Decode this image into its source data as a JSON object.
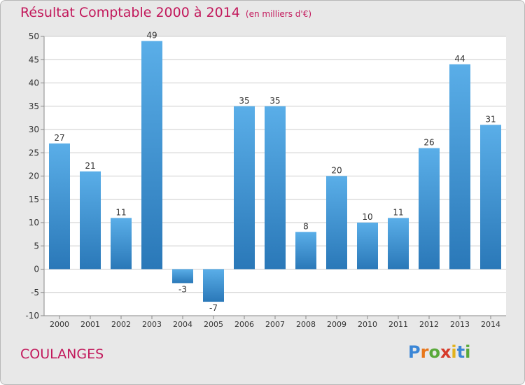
{
  "header": {
    "title": "Résultat Comptable 2000 à 2014",
    "unit": "(en milliers d'€)"
  },
  "footer": {
    "place": "COULANGES",
    "logo_letters": [
      "P",
      "r",
      "o",
      "x",
      "i",
      "t",
      "i"
    ],
    "logo_colors": [
      "#3a86d6",
      "#e8761a",
      "#59a93a",
      "#d63a2a",
      "#e2b21c",
      "#3a86d6",
      "#59a93a"
    ]
  },
  "colors": {
    "title": "#c2185b",
    "bar_light": "#5aaee8",
    "bar_dark": "#2a78b8",
    "grid": "#cccccc"
  },
  "chart_data": {
    "type": "bar",
    "title": "Résultat Comptable 2000 à 2014",
    "categories": [
      "2000",
      "2001",
      "2002",
      "2003",
      "2004",
      "2005",
      "2006",
      "2007",
      "2008",
      "2009",
      "2010",
      "2011",
      "2012",
      "2013",
      "2014"
    ],
    "values": [
      27,
      21,
      11,
      49,
      -3,
      -7,
      35,
      35,
      8,
      20,
      10,
      11,
      26,
      44,
      31
    ],
    "ylim": [
      -10,
      50
    ],
    "yticks": [
      -10,
      -5,
      0,
      5,
      10,
      15,
      20,
      25,
      30,
      35,
      40,
      45,
      50
    ],
    "grid": true,
    "data_labels": true
  }
}
